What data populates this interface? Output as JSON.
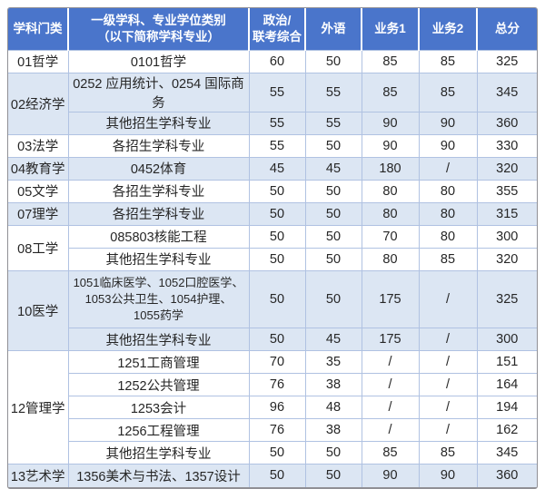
{
  "colors": {
    "header_bg": "#4a75cb",
    "header_text": "#ffffff",
    "row_shade_bg": "#dce6f3",
    "row_white_bg": "#ffffff",
    "grid_border": "#b0c2e2",
    "outer_border": "#909095",
    "body_text": "#262626"
  },
  "table": {
    "headers": [
      {
        "lines": [
          "学科门类"
        ]
      },
      {
        "lines": [
          "一级学科、专业学位类别",
          "（以下简称学科专业）"
        ]
      },
      {
        "lines": [
          "政治/",
          "联考综合"
        ]
      },
      {
        "lines": [
          "外语"
        ]
      },
      {
        "lines": [
          "业务1"
        ]
      },
      {
        "lines": [
          "业务2"
        ]
      },
      {
        "lines": [
          "总分"
        ]
      }
    ],
    "groups": [
      {
        "category": "01哲学",
        "shade": false,
        "rows": [
          [
            "0101哲学",
            "60",
            "50",
            "85",
            "85",
            "325"
          ]
        ]
      },
      {
        "category": "02经济学",
        "shade": true,
        "rows": [
          [
            "0252 应用统计、0254 国际商务",
            "55",
            "55",
            "85",
            "85",
            "345"
          ],
          [
            "其他招生学科专业",
            "55",
            "55",
            "90",
            "90",
            "360"
          ]
        ]
      },
      {
        "category": "03法学",
        "shade": false,
        "rows": [
          [
            "各招生学科专业",
            "55",
            "50",
            "90",
            "90",
            "330"
          ]
        ]
      },
      {
        "category": "04教育学",
        "shade": true,
        "rows": [
          [
            "0452体育",
            "45",
            "45",
            "180",
            "/",
            "320"
          ]
        ]
      },
      {
        "category": "05文学",
        "shade": false,
        "rows": [
          [
            "各招生学科专业",
            "50",
            "50",
            "80",
            "80",
            "355"
          ]
        ]
      },
      {
        "category": "07理学",
        "shade": true,
        "rows": [
          [
            "各招生学科专业",
            "50",
            "50",
            "80",
            "80",
            "315"
          ]
        ]
      },
      {
        "category": "08工学",
        "shade": false,
        "rows": [
          [
            "085803核能工程",
            "50",
            "50",
            "70",
            "80",
            "300"
          ],
          [
            "其他招生学科专业",
            "50",
            "50",
            "80",
            "85",
            "320"
          ]
        ]
      },
      {
        "category": "10医学",
        "shade": true,
        "rows": [
          [
            "1051临床医学、1052口腔医学、1053公共卫生、1054护理、1055药学",
            "50",
            "50",
            "175",
            "/",
            "325"
          ],
          [
            "其他招生学科专业",
            "50",
            "45",
            "175",
            "/",
            "300"
          ]
        ]
      },
      {
        "category": "12管理学",
        "shade": false,
        "rows": [
          [
            "1251工商管理",
            "70",
            "35",
            "/",
            "/",
            "151"
          ],
          [
            "1252公共管理",
            "76",
            "38",
            "/",
            "/",
            "164"
          ],
          [
            "1253会计",
            "96",
            "48",
            "/",
            "/",
            "194"
          ],
          [
            "1256工程管理",
            "76",
            "38",
            "/",
            "/",
            "162"
          ],
          [
            "其他招生学科专业",
            "50",
            "50",
            "85",
            "85",
            "345"
          ]
        ]
      },
      {
        "category": "13艺术学",
        "shade": true,
        "rows": [
          [
            "1356美术与书法、1357设计",
            "50",
            "50",
            "90",
            "90",
            "360"
          ]
        ]
      }
    ],
    "cell_names": [
      "major-cell",
      "politics-score-cell",
      "foreign-language-score-cell",
      "business1-score-cell",
      "business2-score-cell",
      "total-score-cell"
    ]
  }
}
